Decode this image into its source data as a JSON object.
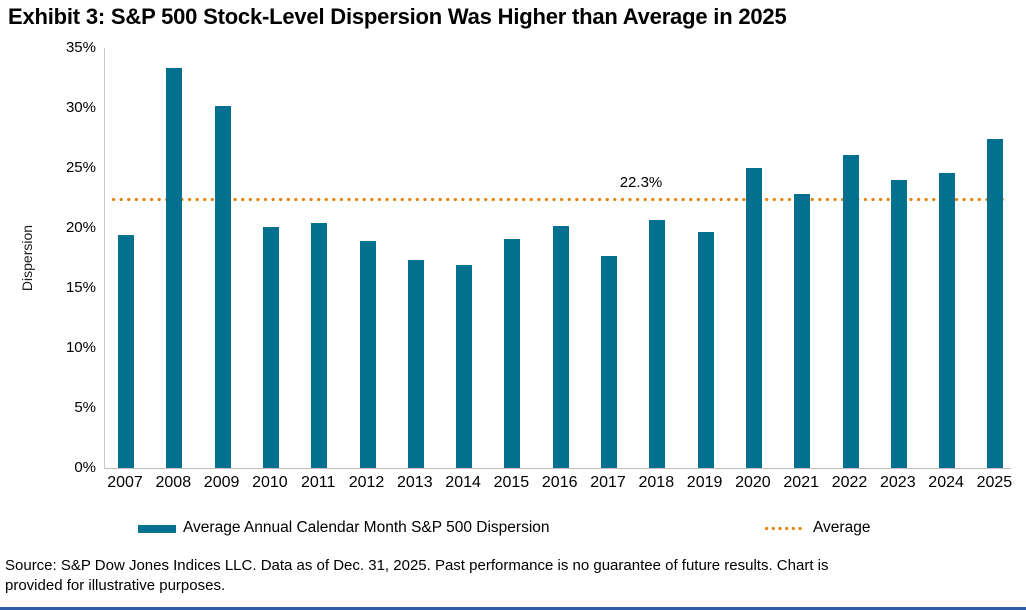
{
  "chart_data": {
    "type": "bar",
    "title": "Exhibit 3: S&P 500 Stock-Level Dispersion Was Higher than Average in 2025",
    "ylabel": "Dispersion",
    "xlabel": "",
    "ylim": [
      0,
      35
    ],
    "ytick_step": 5,
    "ytick_suffix": "%",
    "grid": false,
    "legend_position": "bottom",
    "categories": [
      "2007",
      "2008",
      "2009",
      "2010",
      "2011",
      "2012",
      "2013",
      "2014",
      "2015",
      "2016",
      "2017",
      "2018",
      "2019",
      "2020",
      "2021",
      "2022",
      "2023",
      "2024",
      "2025"
    ],
    "series": [
      {
        "name": "Average Annual Calendar Month S&P 500 Dispersion",
        "values": [
          19.4,
          33.3,
          30.2,
          20.1,
          20.4,
          18.9,
          17.3,
          16.9,
          19.1,
          20.2,
          17.7,
          20.7,
          19.7,
          25.0,
          22.8,
          26.1,
          24.0,
          24.6,
          27.4
        ]
      }
    ],
    "average_line": {
      "name": "Average",
      "value": 22.3,
      "label": "22.3%"
    },
    "legend": [
      {
        "label": "Average Annual Calendar Month S&P 500 Dispersion",
        "swatch": "solid-bar"
      },
      {
        "label": "Average",
        "swatch": "dotted-line"
      }
    ],
    "colors": {
      "bar": "#04708F",
      "average_line": "#E8820D"
    }
  },
  "source_note": {
    "line1": "Source: S&P Dow Jones Indices LLC. Data as of Dec. 31, 2025. Past performance is no guarantee of future results. Chart is",
    "line2": "provided for illustrative purposes."
  }
}
